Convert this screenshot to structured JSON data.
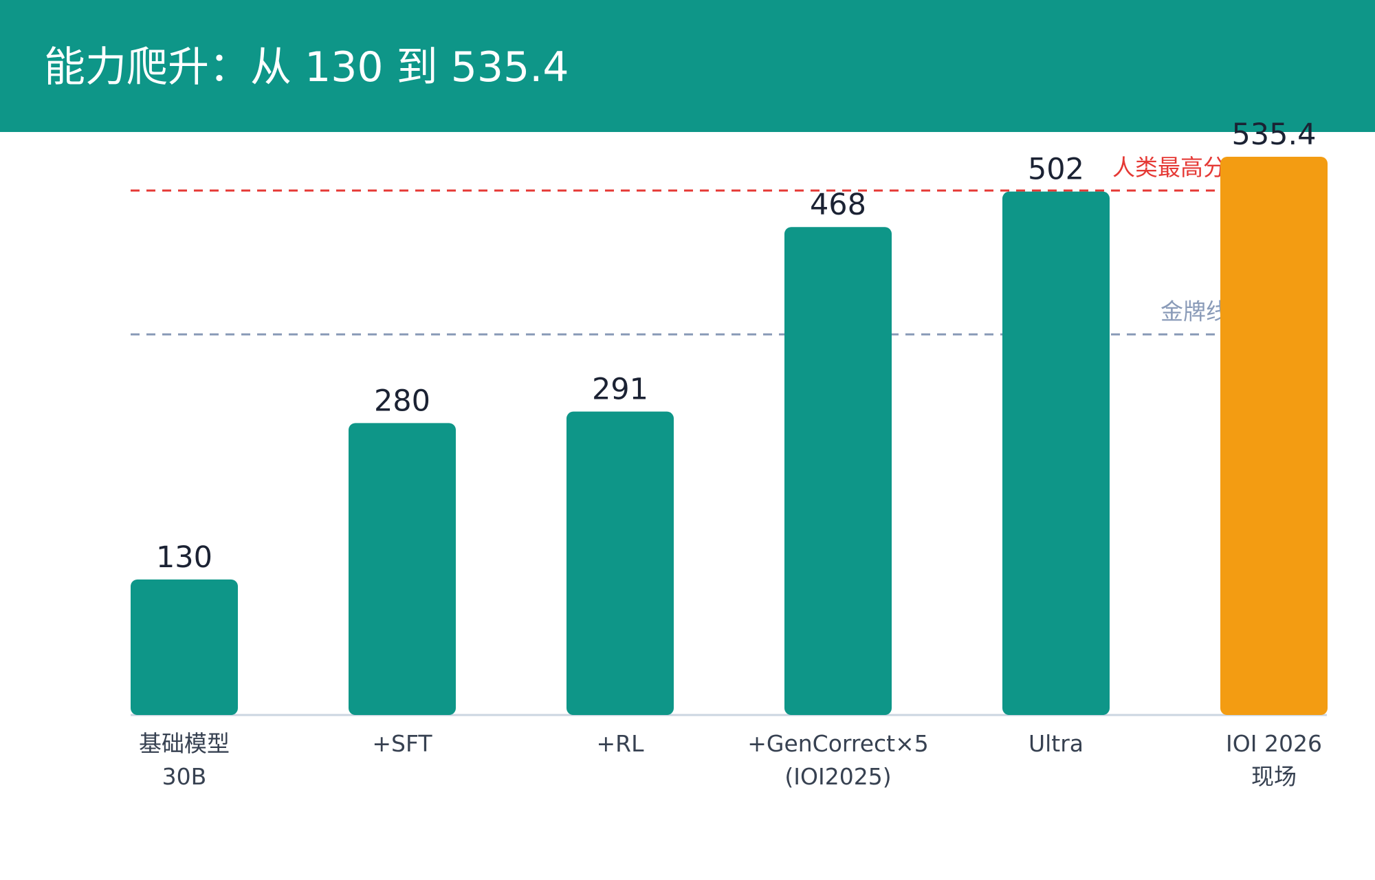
{
  "title": "能力爬升：从 130 到 535.4",
  "colors": {
    "header": "#0e9688",
    "bar": "#0e9688",
    "highlight_bar": "#f39c12",
    "human_line": "#e53935",
    "gold_line": "#8a9bb8",
    "axis": "#cbd5e1",
    "value_text": "#1b2233",
    "category_text": "#374151"
  },
  "chart_data": {
    "type": "bar",
    "title": "能力爬升：从 130 到 535.4",
    "categories": [
      [
        "基础模型",
        "30B"
      ],
      [
        "+SFT"
      ],
      [
        "+RL"
      ],
      [
        "+GenCorrect×5",
        "(IOI2025)"
      ],
      [
        "Ultra"
      ],
      [
        "IOI 2026",
        "现场"
      ]
    ],
    "values": [
      130,
      280,
      291,
      468,
      502,
      535.4
    ],
    "value_labels": [
      "130",
      "280",
      "291",
      "468",
      "502",
      "535.4"
    ],
    "highlight_index": 5,
    "ylim": [
      0,
      535.4
    ],
    "grid": false,
    "reference_lines": [
      {
        "label": "人类最高分",
        "value": 503,
        "color": "#e53935"
      },
      {
        "label": "金牌线",
        "value": 365,
        "color": "#8a9bb8"
      }
    ]
  }
}
